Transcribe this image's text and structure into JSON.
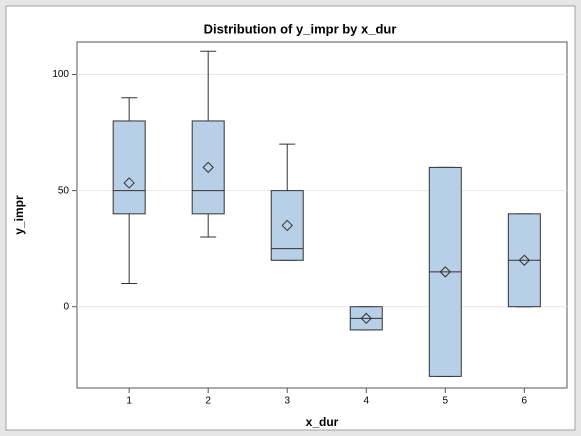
{
  "chart_data": {
    "type": "box",
    "title": "Distribution of  y_impr  by  x_dur",
    "x_label": "x_dur",
    "y_label": "y_impr",
    "x": [
      1,
      2,
      3,
      4,
      5,
      6
    ],
    "whisker_low": [
      10,
      30,
      20,
      -10,
      -30,
      0
    ],
    "q1": [
      40,
      40,
      20,
      -10,
      -30,
      0
    ],
    "median": [
      50,
      50,
      25,
      -5,
      15,
      20
    ],
    "q3": [
      80,
      80,
      50,
      0,
      60,
      40
    ],
    "whisker_high": [
      90,
      110,
      70,
      0,
      60,
      40
    ],
    "mean": [
      53.3,
      60,
      35,
      -5,
      15,
      20
    ],
    "color": "#b8cfe8",
    "xlim": [
      0.34,
      6.54
    ],
    "xticks": [
      1,
      2,
      3,
      4,
      5,
      6
    ],
    "ylim": [
      -35,
      114
    ],
    "yticks": [
      0,
      50,
      100
    ],
    "grid": true
  }
}
